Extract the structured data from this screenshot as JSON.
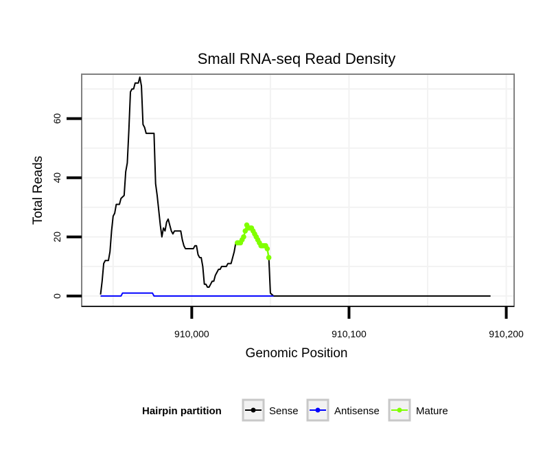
{
  "chart_data": {
    "type": "line",
    "title": "Small RNA-seq Read Density",
    "xlabel": "Genomic Position",
    "ylabel": "Total Reads",
    "xlim": [
      909930,
      910205
    ],
    "ylim": [
      -3.5,
      75
    ],
    "x_ticks": [
      910000,
      910100,
      910200
    ],
    "x_tick_labels": [
      "910,000",
      "910,100",
      "910,200"
    ],
    "y_ticks": [
      0,
      20,
      40,
      60
    ],
    "y_tick_labels": [
      "0",
      "20",
      "40",
      "60"
    ],
    "grid": true,
    "legend": {
      "title": "Hairpin partition",
      "position": "bottom",
      "entries": [
        "Sense",
        "Antisense",
        "Mature"
      ]
    },
    "series": [
      {
        "name": "Sense",
        "color": "#000000",
        "style": "step-line",
        "points": [
          [
            909942,
            0.5
          ],
          [
            909943,
            5
          ],
          [
            909944,
            11
          ],
          [
            909945,
            12
          ],
          [
            909947,
            12
          ],
          [
            909948,
            15
          ],
          [
            909949,
            22
          ],
          [
            909950,
            27
          ],
          [
            909951,
            28
          ],
          [
            909952,
            31
          ],
          [
            909954,
            31
          ],
          [
            909955,
            33
          ],
          [
            909957,
            34
          ],
          [
            909958,
            42
          ],
          [
            909959,
            45
          ],
          [
            909960,
            56
          ],
          [
            909961,
            69
          ],
          [
            909962,
            70
          ],
          [
            909963,
            70
          ],
          [
            909964,
            72
          ],
          [
            909966,
            72
          ],
          [
            909967,
            74
          ],
          [
            909968,
            71
          ],
          [
            909969,
            58
          ],
          [
            909970,
            57
          ],
          [
            909971,
            55
          ],
          [
            909976,
            55
          ],
          [
            909977,
            38
          ],
          [
            909978,
            34
          ],
          [
            909979,
            29
          ],
          [
            909980,
            24
          ],
          [
            909981,
            20
          ],
          [
            909982,
            23
          ],
          [
            909983,
            22
          ],
          [
            909984,
            25
          ],
          [
            909985,
            26
          ],
          [
            909986,
            24
          ],
          [
            909987,
            22
          ],
          [
            909988,
            21
          ],
          [
            909989,
            22
          ],
          [
            909993,
            22
          ],
          [
            909994,
            19
          ],
          [
            909995,
            17
          ],
          [
            909996,
            16
          ],
          [
            910001,
            16
          ],
          [
            910002,
            17
          ],
          [
            910003,
            17
          ],
          [
            910004,
            14
          ],
          [
            910005,
            13
          ],
          [
            910006,
            13
          ],
          [
            910007,
            10
          ],
          [
            910008,
            4
          ],
          [
            910009,
            4
          ],
          [
            910010,
            3
          ],
          [
            910011,
            3
          ],
          [
            910012,
            4
          ],
          [
            910013,
            5
          ],
          [
            910014,
            5
          ],
          [
            910015,
            7
          ],
          [
            910016,
            8
          ],
          [
            910017,
            9
          ],
          [
            910018,
            9
          ],
          [
            910019,
            10
          ],
          [
            910022,
            10
          ],
          [
            910023,
            11
          ],
          [
            910025,
            11
          ],
          [
            910026,
            13
          ],
          [
            910027,
            15
          ],
          [
            910028,
            18
          ],
          [
            910029,
            18
          ],
          [
            910031,
            18
          ],
          [
            910032,
            19
          ],
          [
            910033,
            20
          ],
          [
            910034,
            22
          ],
          [
            910035,
            24
          ],
          [
            910036,
            23
          ],
          [
            910038,
            23
          ],
          [
            910039,
            22
          ],
          [
            910040,
            21
          ],
          [
            910041,
            20
          ],
          [
            910042,
            19
          ],
          [
            910043,
            18
          ],
          [
            910044,
            17
          ],
          [
            910045,
            17
          ],
          [
            910047,
            17
          ],
          [
            910048,
            16
          ],
          [
            910049,
            13
          ],
          [
            910050,
            1
          ],
          [
            910051,
            0.5
          ],
          [
            910052,
            0
          ],
          [
            910190,
            0
          ]
        ]
      },
      {
        "name": "Antisense",
        "color": "#0000ff",
        "style": "step-line",
        "points": [
          [
            909942,
            0
          ],
          [
            909955,
            0
          ],
          [
            909956,
            1
          ],
          [
            909975,
            1
          ],
          [
            909976,
            0
          ],
          [
            910052,
            0
          ]
        ]
      },
      {
        "name": "Mature",
        "color": "#80ff00",
        "style": "points",
        "points": [
          [
            910029,
            18
          ],
          [
            910030,
            18
          ],
          [
            910031,
            18
          ],
          [
            910032,
            19
          ],
          [
            910033,
            20
          ],
          [
            910034,
            22
          ],
          [
            910035,
            24
          ],
          [
            910036,
            23
          ],
          [
            910037,
            23
          ],
          [
            910038,
            23
          ],
          [
            910039,
            22
          ],
          [
            910040,
            21
          ],
          [
            910041,
            20
          ],
          [
            910042,
            19
          ],
          [
            910043,
            18
          ],
          [
            910044,
            17
          ],
          [
            910045,
            17
          ],
          [
            910046,
            17
          ],
          [
            910047,
            17
          ],
          [
            910048,
            16
          ],
          [
            910049,
            13
          ]
        ]
      }
    ]
  }
}
